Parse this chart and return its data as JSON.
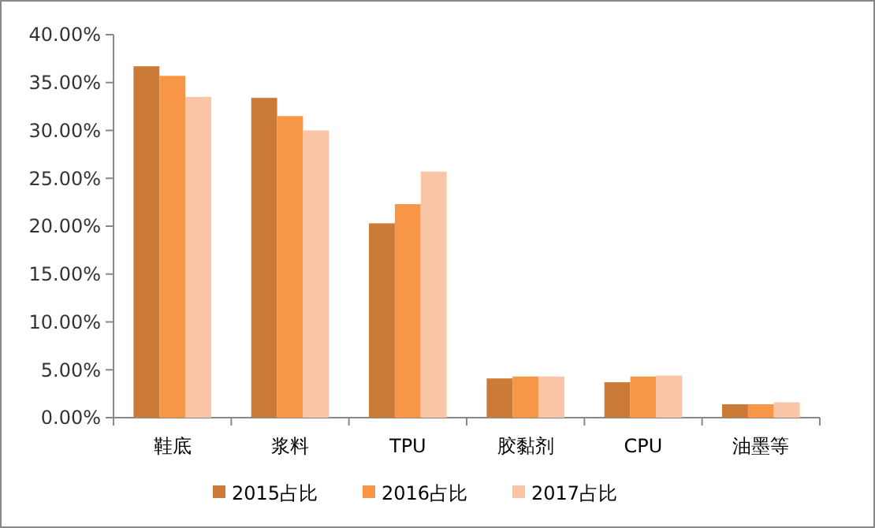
{
  "chart_data": {
    "type": "bar",
    "categories": [
      "鞋底",
      "浆料",
      "TPU",
      "胶黏剂",
      "CPU",
      "油墨等"
    ],
    "series": [
      {
        "name": "2015占比",
        "color": "#cc7a38",
        "values": [
          36.7,
          33.4,
          20.3,
          4.1,
          3.7,
          1.4
        ]
      },
      {
        "name": "2016占比",
        "color": "#f79646",
        "values": [
          35.7,
          31.5,
          22.3,
          4.3,
          4.3,
          1.4
        ]
      },
      {
        "name": "2017占比",
        "color": "#fac4a6",
        "values": [
          33.5,
          30.0,
          25.7,
          4.3,
          4.4,
          1.6
        ]
      }
    ],
    "ylim": [
      0,
      40
    ],
    "yticks": [
      {
        "value": 0,
        "label": "0.00%"
      },
      {
        "value": 5,
        "label": "5.00%"
      },
      {
        "value": 10,
        "label": "10.00%"
      },
      {
        "value": 15,
        "label": "15.00%"
      },
      {
        "value": 20,
        "label": "20.00%"
      },
      {
        "value": 25,
        "label": "25.00%"
      },
      {
        "value": 30,
        "label": "30.00%"
      },
      {
        "value": 35,
        "label": "35.00%"
      },
      {
        "value": 40,
        "label": "40.00%"
      }
    ],
    "legend": "bottom"
  }
}
